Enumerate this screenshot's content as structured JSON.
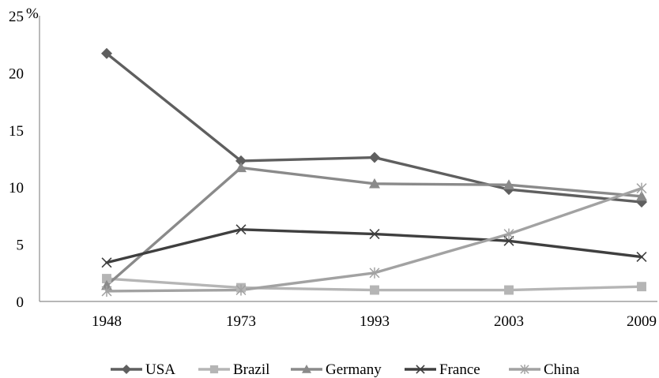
{
  "chart_data": {
    "type": "line",
    "title": "",
    "xlabel": "",
    "ylabel": "",
    "y_unit_label": "%",
    "categories": [
      "1948",
      "1973",
      "1993",
      "2003",
      "2009"
    ],
    "ylim": [
      0,
      25
    ],
    "yticks": [
      "0",
      "5",
      "10",
      "15",
      "20",
      "25"
    ],
    "grid": false,
    "legend_position": "bottom",
    "series": [
      {
        "name": "USA",
        "values": [
          21.7,
          12.3,
          12.6,
          9.8,
          8.7
        ],
        "color": "#5f5f5f",
        "marker": "diamond"
      },
      {
        "name": "Brazil",
        "values": [
          2.0,
          1.2,
          1.0,
          1.0,
          1.3
        ],
        "color": "#b5b5b5",
        "marker": "square"
      },
      {
        "name": "Germany",
        "values": [
          1.4,
          11.7,
          10.3,
          10.2,
          9.2
        ],
        "color": "#8a8a8a",
        "marker": "triangle"
      },
      {
        "name": "France",
        "values": [
          3.4,
          6.3,
          5.9,
          5.3,
          3.9
        ],
        "color": "#3f3f3f",
        "marker": "x"
      },
      {
        "name": "China",
        "values": [
          0.9,
          1.0,
          2.5,
          5.9,
          9.9
        ],
        "color": "#a2a2a2",
        "marker": "star"
      }
    ]
  }
}
